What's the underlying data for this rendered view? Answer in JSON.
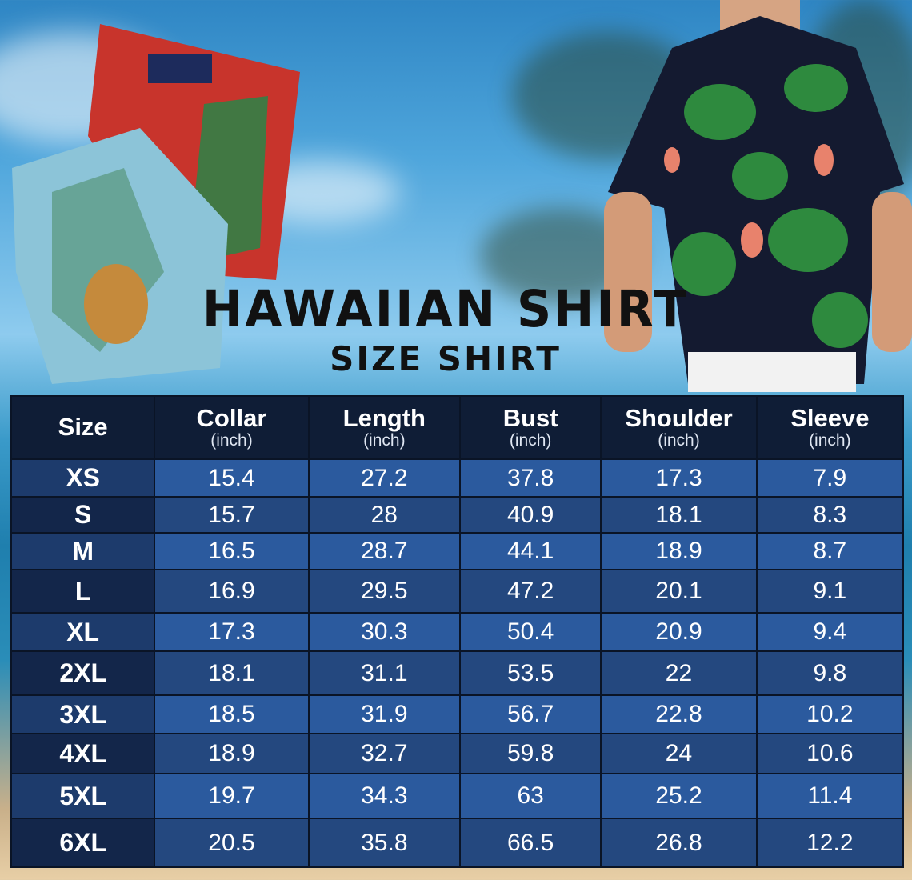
{
  "title": "HAWAIIAN SHIRT",
  "subtitle": "SIZE SHIRT",
  "colors": {
    "header_bg": "#0f1d36",
    "row_light": "#2b5a9e",
    "row_dark": "#24487f",
    "size_col": "#13264a"
  },
  "table": {
    "headers": [
      {
        "label": "Size",
        "unit": ""
      },
      {
        "label": "Collar",
        "unit": "(inch)"
      },
      {
        "label": "Length",
        "unit": "(inch)"
      },
      {
        "label": "Bust",
        "unit": "(inch)"
      },
      {
        "label": "Shoulder",
        "unit": "(inch)"
      },
      {
        "label": "Sleeve",
        "unit": "(inch)"
      }
    ],
    "rows": [
      [
        "XS",
        "15.4",
        "27.2",
        "37.8",
        "17.3",
        "7.9"
      ],
      [
        "S",
        "15.7",
        "28",
        "40.9",
        "18.1",
        "8.3"
      ],
      [
        "M",
        "16.5",
        "28.7",
        "44.1",
        "18.9",
        "8.7"
      ],
      [
        "L",
        "16.9",
        "29.5",
        "47.2",
        "20.1",
        "9.1"
      ],
      [
        "XL",
        "17.3",
        "30.3",
        "50.4",
        "20.9",
        "9.4"
      ],
      [
        "2XL",
        "18.1",
        "31.1",
        "53.5",
        "22",
        "9.8"
      ],
      [
        "3XL",
        "18.5",
        "31.9",
        "56.7",
        "22.8",
        "10.2"
      ],
      [
        "4XL",
        "18.9",
        "32.7",
        "59.8",
        "24",
        "10.6"
      ],
      [
        "5XL",
        "19.7",
        "34.3",
        "63",
        "25.2",
        "11.4"
      ],
      [
        "6XL",
        "20.5",
        "35.8",
        "66.5",
        "26.8",
        "12.2"
      ]
    ]
  }
}
